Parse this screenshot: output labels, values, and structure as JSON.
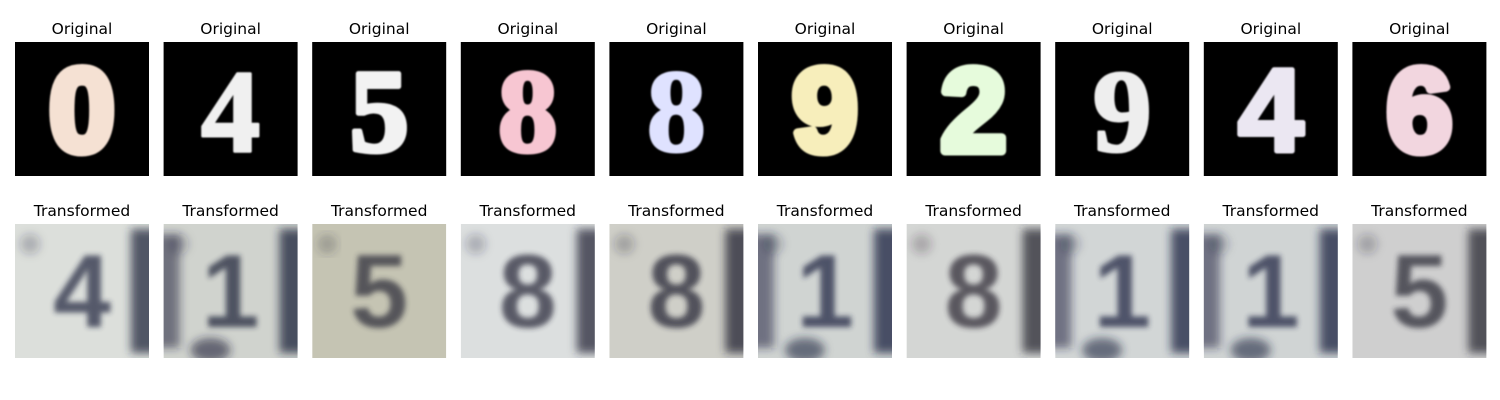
{
  "figure": {
    "row_titles": {
      "original": "Original",
      "transformed": "Transformed"
    },
    "panels": [
      {
        "original": {
          "digit": "0",
          "color": "#f5e1d3",
          "font": "Liberation Sans",
          "stroke_weight": "heavy"
        },
        "transformed": {
          "ghost": "4",
          "base": "#dcdfdb",
          "dark": "#24283f",
          "left_dark": false,
          "right_dark": true,
          "bottom_dark": false
        }
      },
      {
        "original": {
          "digit": "4",
          "color": "#f0f0f0",
          "font": "Liberation Serif",
          "stroke_weight": "thin"
        },
        "transformed": {
          "ghost": "1",
          "base": "#d0d3ce",
          "dark": "#1c2038",
          "left_dark": true,
          "right_dark": true,
          "bottom_dark": true
        }
      },
      {
        "original": {
          "digit": "5",
          "color": "#f2f2f2",
          "font": "Liberation Serif",
          "stroke_weight": "medium"
        },
        "transformed": {
          "ghost": "5",
          "base": "#c5c4b3",
          "dark": "#2a2c38",
          "left_dark": false,
          "right_dark": false,
          "bottom_dark": false
        }
      },
      {
        "original": {
          "digit": "8",
          "color": "#f7c6d2",
          "font": "Liberation Serif",
          "stroke_weight": "medium"
        },
        "transformed": {
          "ghost": "8",
          "base": "#dcdfdf",
          "dark": "#262838",
          "left_dark": false,
          "right_dark": true,
          "bottom_dark": false
        }
      },
      {
        "original": {
          "digit": "8",
          "color": "#dfe2ff",
          "font": "Liberation Serif",
          "stroke_weight": "thin"
        },
        "transformed": {
          "ghost": "8",
          "base": "#cfcfc8",
          "dark": "#222433",
          "left_dark": false,
          "right_dark": true,
          "bottom_dark": false
        }
      },
      {
        "original": {
          "digit": "9",
          "color": "#f7eebb",
          "font": "Liberation Sans",
          "stroke_weight": "heavy"
        },
        "transformed": {
          "ghost": "1",
          "base": "#d0d4d2",
          "dark": "#1d2340",
          "left_dark": true,
          "right_dark": true,
          "bottom_dark": true
        }
      },
      {
        "original": {
          "digit": "2",
          "color": "#e6fbdc",
          "font": "Liberation Sans",
          "stroke_weight": "heavy"
        },
        "transformed": {
          "ghost": "8",
          "base": "#d4d6d4",
          "dark": "#2a2630",
          "left_dark": false,
          "right_dark": true,
          "bottom_dark": false
        }
      },
      {
        "original": {
          "digit": "9",
          "color": "#eeeeee",
          "font": "Liberation Serif",
          "stroke_weight": "thin"
        },
        "transformed": {
          "ghost": "1",
          "base": "#d2d6d6",
          "dark": "#1d2340",
          "left_dark": true,
          "right_dark": true,
          "bottom_dark": true
        }
      },
      {
        "original": {
          "digit": "4",
          "color": "#ebe7f2",
          "font": "Liberation Sans",
          "stroke_weight": "medium"
        },
        "transformed": {
          "ghost": "1",
          "base": "#d0d4d4",
          "dark": "#1d2340",
          "left_dark": true,
          "right_dark": true,
          "bottom_dark": true
        }
      },
      {
        "original": {
          "digit": "6",
          "color": "#f2d6df",
          "font": "Liberation Sans",
          "stroke_weight": "heavy"
        },
        "transformed": {
          "ghost": "5",
          "base": "#cfcfcf",
          "dark": "#262630",
          "left_dark": false,
          "right_dark": true,
          "bottom_dark": false
        }
      }
    ]
  }
}
